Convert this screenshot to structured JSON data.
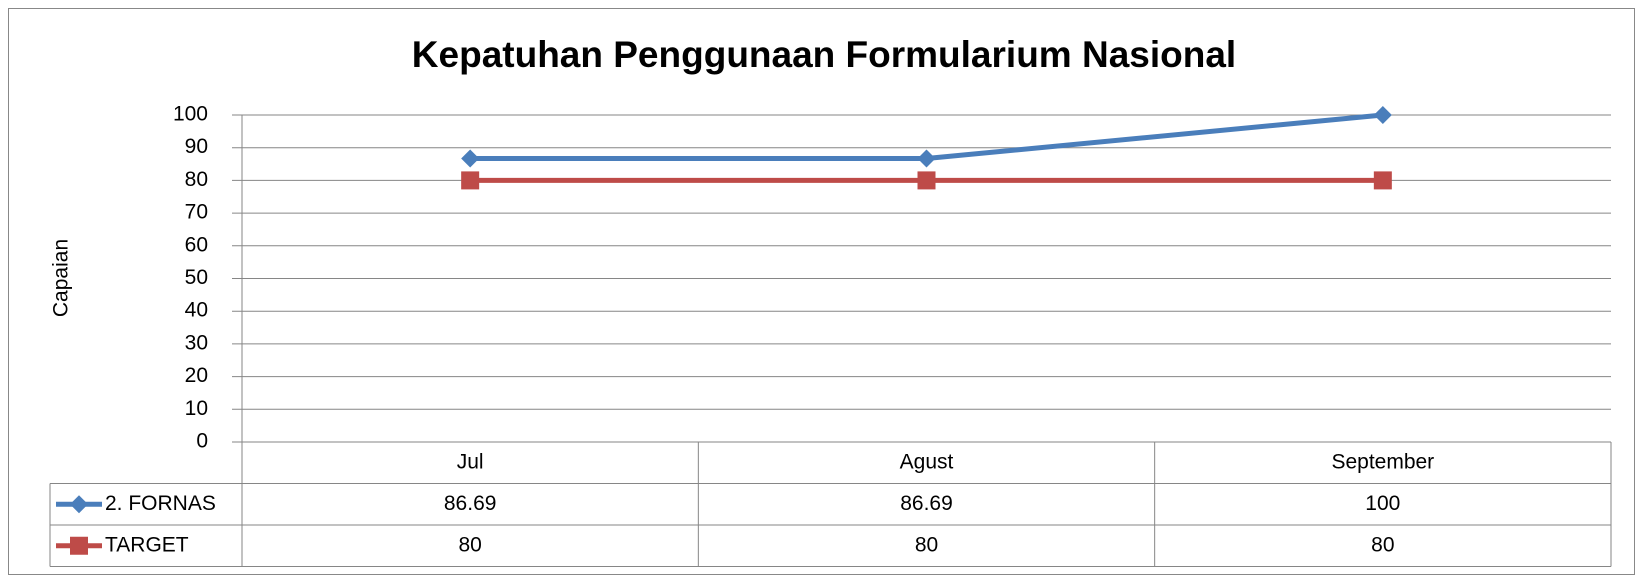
{
  "chart_data": {
    "type": "line",
    "title": "Kepatuhan Penggunaan Formularium Nasional",
    "y_label": "Capaian",
    "categories": [
      "Jul",
      "Agust",
      "September"
    ],
    "series": [
      {
        "name": "2. FORNAS",
        "color": "#4a7ebb",
        "marker": "diamond",
        "values": [
          86.69,
          86.69,
          100
        ]
      },
      {
        "name": "TARGET",
        "color": "#be4b48",
        "marker": "square",
        "values": [
          80,
          80,
          80
        ]
      }
    ],
    "ylim": [
      0,
      100
    ],
    "yticks": [
      0,
      10,
      20,
      30,
      40,
      50,
      60,
      70,
      80,
      90,
      100
    ],
    "grid": true,
    "data_table": true
  }
}
